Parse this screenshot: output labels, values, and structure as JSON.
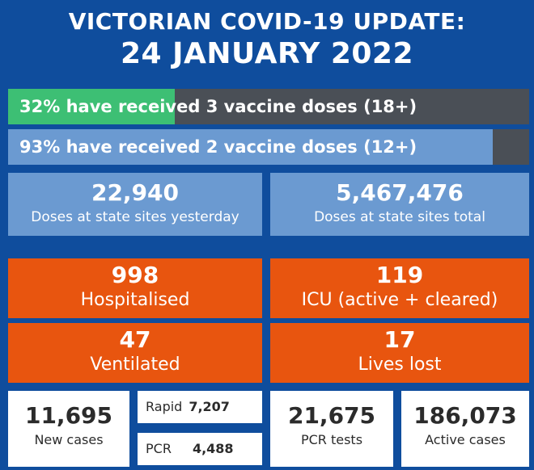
{
  "header": {
    "title": "VICTORIAN COVID-19 UPDATE:",
    "date": "24 JANUARY 2022"
  },
  "vaccination": {
    "three_doses": {
      "label": "32% have received 3 vaccine doses (18+)",
      "percent": 32,
      "color": "#3dbf74"
    },
    "two_doses": {
      "label": "93% have received 2 vaccine doses (12+)",
      "percent": 93,
      "color": "#6b9ad1"
    },
    "bar_background": "#4a4f56"
  },
  "doses": {
    "yesterday": {
      "value": "22,940",
      "caption": "Doses at state sites yesterday"
    },
    "total": {
      "value": "5,467,476",
      "caption": "Doses at state sites total"
    }
  },
  "hospital": {
    "hospitalised": {
      "value": "998",
      "caption": "Hospitalised"
    },
    "icu": {
      "value": "119",
      "caption": "ICU (active + cleared)"
    },
    "ventilated": {
      "value": "47",
      "caption": "Ventilated"
    },
    "lives_lost": {
      "value": "17",
      "caption": "Lives lost"
    }
  },
  "cases": {
    "new_cases": {
      "value": "11,695",
      "caption": "New cases"
    },
    "rapid": {
      "label": "Rapid",
      "value": "7,207"
    },
    "pcr": {
      "label": "PCR",
      "value": "4,488"
    },
    "pcr_tests": {
      "value": "21,675",
      "caption": "PCR tests"
    },
    "active_cases": {
      "value": "186,073",
      "caption": "Active cases"
    }
  },
  "colors": {
    "background": "#0f4d9d",
    "blue_box": "#6b9ad1",
    "orange_box": "#e8550f",
    "white_box": "#ffffff"
  }
}
